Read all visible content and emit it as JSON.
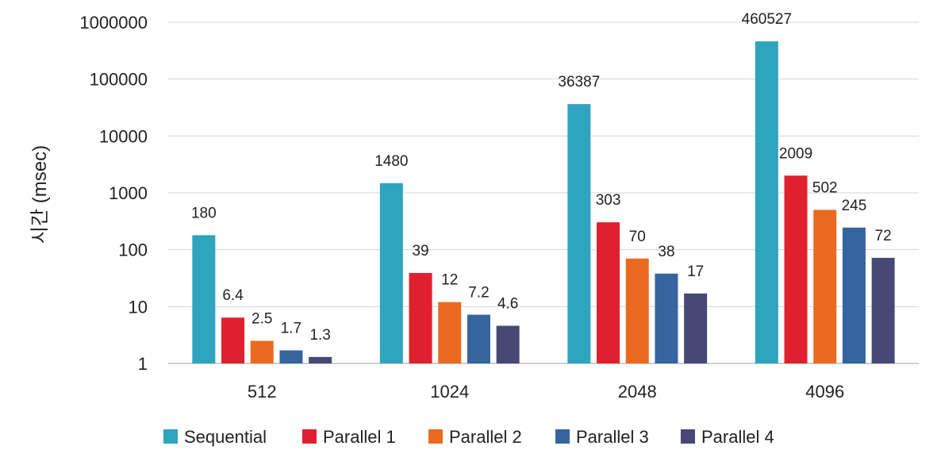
{
  "chart_data": {
    "type": "bar",
    "title": "",
    "xlabel": "",
    "ylabel": "시간 (msec)",
    "y_scale": "log",
    "ylim": [
      1,
      1000000
    ],
    "y_ticks": [
      "1",
      "10",
      "100",
      "1000",
      "10000",
      "100000",
      "1000000"
    ],
    "y_tick_values": [
      1,
      10,
      100,
      1000,
      10000,
      100000,
      1000000
    ],
    "grid": true,
    "legend_position": "bottom",
    "categories": [
      "512",
      "1024",
      "2048",
      "4096"
    ],
    "series": [
      {
        "name": "Sequential",
        "color": "#2ea4bf",
        "values": [
          180,
          1480,
          36387,
          460527
        ],
        "labels": [
          "180",
          "1480",
          "36387",
          "460527"
        ]
      },
      {
        "name": "Parallel 1",
        "color": "#e0202e",
        "values": [
          6.4,
          39,
          303,
          2009
        ],
        "labels": [
          "6.4",
          "39",
          "303",
          "2009"
        ]
      },
      {
        "name": "Parallel 2",
        "color": "#eb6a21",
        "values": [
          2.5,
          12,
          70,
          502
        ],
        "labels": [
          "2.5",
          "12",
          "70",
          "502"
        ]
      },
      {
        "name": "Parallel 3",
        "color": "#36649f",
        "values": [
          1.7,
          7.2,
          38,
          245
        ],
        "labels": [
          "1.7",
          "7.2",
          "38",
          "245"
        ]
      },
      {
        "name": "Parallel 4",
        "color": "#474876",
        "values": [
          1.3,
          4.6,
          17,
          72
        ],
        "labels": [
          "1.3",
          "4.6",
          "17",
          "72"
        ]
      }
    ]
  }
}
